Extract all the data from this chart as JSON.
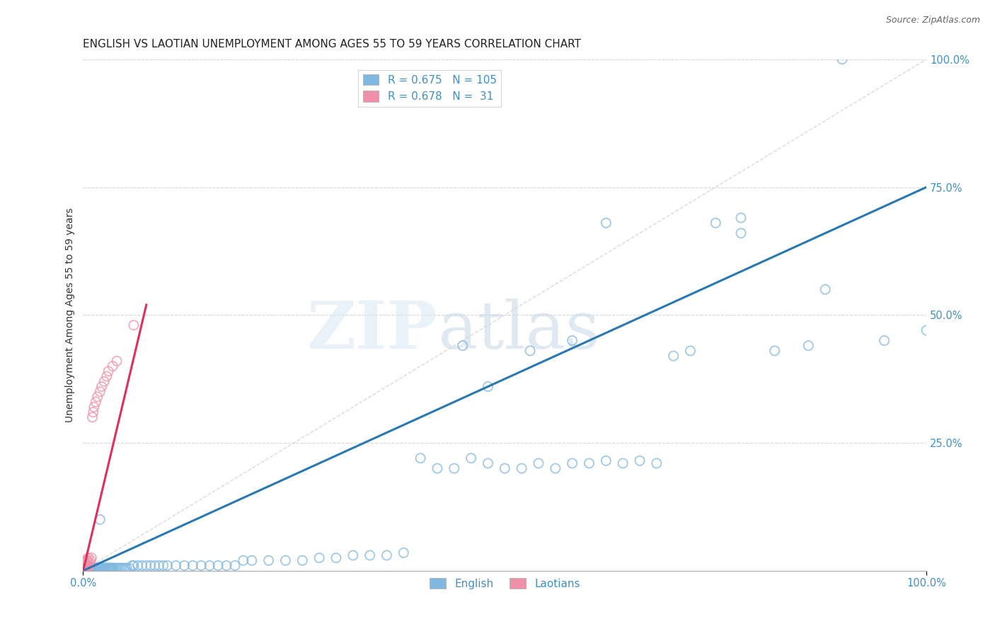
{
  "title": "ENGLISH VS LAOTIAN UNEMPLOYMENT AMONG AGES 55 TO 59 YEARS CORRELATION CHART",
  "source": "Source: ZipAtlas.com",
  "xlabel_ticks": [
    "0.0%",
    "100.0%"
  ],
  "ylabel_label": "Unemployment Among Ages 55 to 59 years",
  "ytick_labels": [
    "",
    "25.0%",
    "50.0%",
    "75.0%",
    "100.0%"
  ],
  "ytick_positions": [
    0.0,
    0.25,
    0.5,
    0.75,
    1.0
  ],
  "watermark_zip": "ZIP",
  "watermark_atlas": "atlas",
  "legend_line1": "R = 0.675   N = 105",
  "legend_line2": "R = 0.678   N =  31",
  "english_color": "#80b8e0",
  "laotian_color": "#f090a8",
  "english_line_color": "#2878b4",
  "laotian_line_color": "#e0305a",
  "diagonal_color": "#c8c0c0",
  "background_color": "#ffffff",
  "grid_color": "#d8d8d8",
  "tick_color": "#4090c8",
  "english_scatter_x": [
    0.003,
    0.004,
    0.005,
    0.006,
    0.007,
    0.008,
    0.009,
    0.01,
    0.01,
    0.011,
    0.012,
    0.013,
    0.014,
    0.015,
    0.016,
    0.017,
    0.018,
    0.019,
    0.02,
    0.021,
    0.022,
    0.023,
    0.024,
    0.025,
    0.026,
    0.027,
    0.028,
    0.029,
    0.03,
    0.031,
    0.032,
    0.033,
    0.034,
    0.035,
    0.036,
    0.038,
    0.04,
    0.042,
    0.044,
    0.046,
    0.048,
    0.05,
    0.052,
    0.055,
    0.058,
    0.06,
    0.065,
    0.07,
    0.075,
    0.08,
    0.085,
    0.09,
    0.095,
    0.1,
    0.11,
    0.12,
    0.13,
    0.14,
    0.15,
    0.16,
    0.17,
    0.18,
    0.19,
    0.2,
    0.22,
    0.24,
    0.26,
    0.28,
    0.3,
    0.32,
    0.34,
    0.36,
    0.38,
    0.4,
    0.42,
    0.44,
    0.46,
    0.48,
    0.5,
    0.52,
    0.54,
    0.56,
    0.58,
    0.6,
    0.62,
    0.64,
    0.66,
    0.68,
    0.7,
    0.72,
    0.75,
    0.78,
    0.82,
    0.86,
    0.9,
    0.95,
    1.0,
    0.45,
    0.48,
    0.53,
    0.58,
    0.62,
    0.78,
    0.88,
    0.02
  ],
  "english_scatter_y": [
    0.005,
    0.005,
    0.005,
    0.005,
    0.005,
    0.005,
    0.005,
    0.005,
    0.005,
    0.005,
    0.005,
    0.005,
    0.005,
    0.005,
    0.005,
    0.005,
    0.005,
    0.005,
    0.005,
    0.005,
    0.005,
    0.005,
    0.005,
    0.005,
    0.005,
    0.005,
    0.005,
    0.005,
    0.005,
    0.005,
    0.005,
    0.005,
    0.005,
    0.005,
    0.005,
    0.005,
    0.005,
    0.005,
    0.005,
    0.005,
    0.005,
    0.005,
    0.005,
    0.005,
    0.01,
    0.01,
    0.01,
    0.01,
    0.01,
    0.01,
    0.01,
    0.01,
    0.01,
    0.01,
    0.01,
    0.01,
    0.01,
    0.01,
    0.01,
    0.01,
    0.01,
    0.01,
    0.02,
    0.02,
    0.02,
    0.02,
    0.02,
    0.025,
    0.025,
    0.03,
    0.03,
    0.03,
    0.035,
    0.22,
    0.2,
    0.2,
    0.22,
    0.21,
    0.2,
    0.2,
    0.21,
    0.2,
    0.21,
    0.21,
    0.215,
    0.21,
    0.215,
    0.21,
    0.42,
    0.43,
    0.68,
    0.66,
    0.43,
    0.44,
    1.0,
    0.45,
    0.47,
    0.44,
    0.36,
    0.43,
    0.45,
    0.68,
    0.69,
    0.55,
    0.1
  ],
  "laotian_scatter_x": [
    0.001,
    0.001,
    0.001,
    0.002,
    0.002,
    0.002,
    0.003,
    0.003,
    0.004,
    0.004,
    0.005,
    0.005,
    0.006,
    0.006,
    0.007,
    0.008,
    0.009,
    0.01,
    0.011,
    0.012,
    0.013,
    0.015,
    0.017,
    0.02,
    0.022,
    0.025,
    0.028,
    0.03,
    0.035,
    0.04,
    0.06
  ],
  "laotian_scatter_y": [
    0.005,
    0.01,
    0.015,
    0.005,
    0.01,
    0.02,
    0.005,
    0.015,
    0.005,
    0.02,
    0.005,
    0.02,
    0.01,
    0.025,
    0.01,
    0.015,
    0.02,
    0.025,
    0.3,
    0.31,
    0.32,
    0.33,
    0.34,
    0.35,
    0.36,
    0.37,
    0.38,
    0.39,
    0.4,
    0.41,
    0.48
  ],
  "english_line_x": [
    0.0,
    1.0
  ],
  "english_line_y": [
    0.0,
    0.75
  ],
  "laotian_line_x": [
    0.0,
    0.075
  ],
  "laotian_line_y": [
    0.0,
    0.52
  ],
  "diagonal_line_x": [
    0.0,
    1.0
  ],
  "diagonal_line_y": [
    0.0,
    1.0
  ],
  "xlim": [
    0.0,
    1.0
  ],
  "ylim": [
    0.0,
    1.0
  ],
  "title_fontsize": 11,
  "label_fontsize": 10,
  "tick_fontsize": 10.5,
  "source_fontsize": 9
}
